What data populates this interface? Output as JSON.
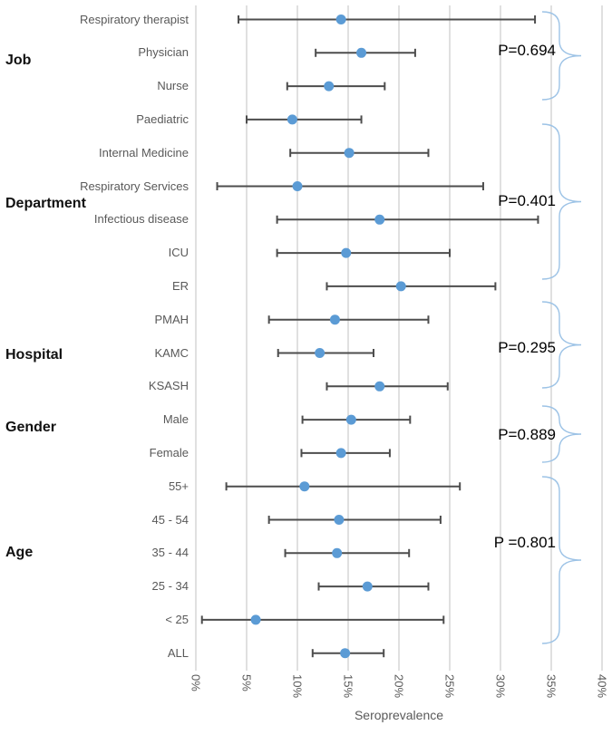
{
  "chart_data": {
    "type": "scatter",
    "subtype": "forest-plot-horizontal-error-bars",
    "title": "",
    "xlabel": "Seroprevalence",
    "ylabel": "",
    "xlim": [
      0,
      40
    ],
    "x_ticks": [
      "0%",
      "5%",
      "10%",
      "15%",
      "20%",
      "25%",
      "30%",
      "35%",
      "40%"
    ],
    "x_tick_values": [
      0,
      5,
      10,
      15,
      20,
      25,
      30,
      35,
      40
    ],
    "grid": "vertical-only",
    "legend": "none",
    "units": "percent",
    "groups": [
      {
        "label": "Job",
        "p_value": "P=0.694",
        "rows": [
          {
            "label": "Respiratory therapist",
            "low": 4.2,
            "mid": 14.3,
            "high": 33.4
          },
          {
            "label": "Physician",
            "low": 11.8,
            "mid": 16.3,
            "high": 21.6
          },
          {
            "label": "Nurse",
            "low": 9.0,
            "mid": 13.1,
            "high": 18.6
          }
        ]
      },
      {
        "label": "Department",
        "p_value": "P=0.401",
        "rows": [
          {
            "label": "Paediatric",
            "low": 5.0,
            "mid": 9.5,
            "high": 16.3
          },
          {
            "label": "Internal Medicine",
            "low": 9.3,
            "mid": 15.1,
            "high": 22.9
          },
          {
            "label": "Respiratory Services",
            "low": 2.1,
            "mid": 10.0,
            "high": 28.3
          },
          {
            "label": "Infectious disease",
            "low": 8.0,
            "mid": 18.1,
            "high": 33.7
          },
          {
            "label": "ICU",
            "low": 8.0,
            "mid": 14.8,
            "high": 25.0
          },
          {
            "label": "ER",
            "low": 12.9,
            "mid": 20.2,
            "high": 29.5
          }
        ]
      },
      {
        "label": "Hospital",
        "p_value": "P=0.295",
        "rows": [
          {
            "label": "PMAH",
            "low": 7.2,
            "mid": 13.7,
            "high": 22.9
          },
          {
            "label": "KAMC",
            "low": 8.1,
            "mid": 12.2,
            "high": 17.5
          },
          {
            "label": "KSASH",
            "low": 12.9,
            "mid": 18.1,
            "high": 24.8
          }
        ]
      },
      {
        "label": "Gender",
        "p_value": "P=0.889",
        "rows": [
          {
            "label": "Male",
            "low": 10.5,
            "mid": 15.3,
            "high": 21.1
          },
          {
            "label": "Female",
            "low": 10.4,
            "mid": 14.3,
            "high": 19.1
          }
        ]
      },
      {
        "label": "Age",
        "p_value": "P =0.801",
        "rows": [
          {
            "label": "55+",
            "low": 3.0,
            "mid": 10.7,
            "high": 26.0
          },
          {
            "label": "45 - 54",
            "low": 7.2,
            "mid": 14.1,
            "high": 24.1
          },
          {
            "label": "35 - 44",
            "low": 8.8,
            "mid": 13.9,
            "high": 21.0
          },
          {
            "label": "25 - 34",
            "low": 12.1,
            "mid": 16.9,
            "high": 22.9
          },
          {
            "label": "< 25",
            "low": 0.6,
            "mid": 5.9,
            "high": 24.4
          }
        ]
      },
      {
        "label": "",
        "p_value": null,
        "rows": [
          {
            "label": "ALL",
            "low": 11.5,
            "mid": 14.7,
            "high": 18.5
          }
        ]
      }
    ],
    "colors": {
      "point": "#5B9BD5",
      "error_bar": "#4d4d4d",
      "gridline": "#D6D6D6",
      "brace": "#9DC3E6",
      "category_label": "#595959",
      "group_label": "#111111",
      "p_label": "#000000",
      "tick_label": "#595959",
      "axis_title": "#595959",
      "background": "#FFFFFF"
    }
  }
}
